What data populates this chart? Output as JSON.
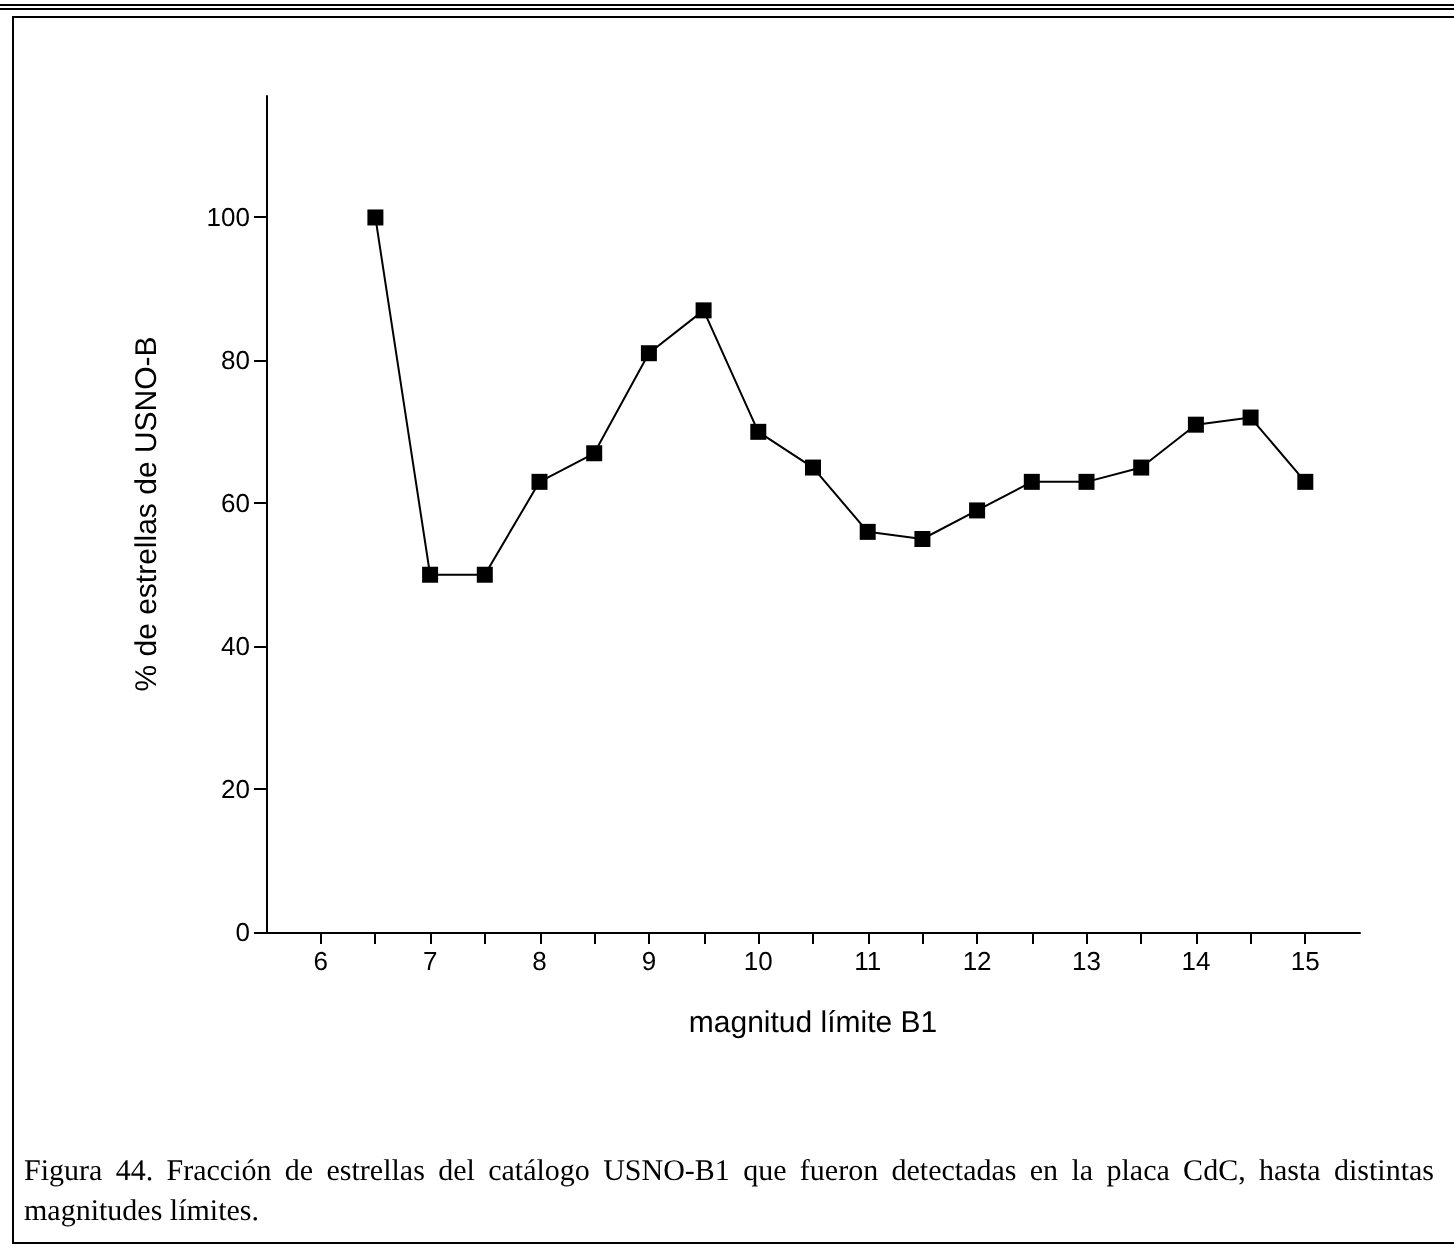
{
  "chart_data": {
    "type": "line",
    "xlabel": "magnitud límite B1",
    "ylabel": "% de estrellas de USNO-B",
    "x": [
      6.5,
      7,
      7.5,
      8,
      8.5,
      9,
      9.5,
      10,
      10.5,
      11,
      11.5,
      12,
      12.5,
      13,
      13.5,
      14,
      14.5,
      15
    ],
    "series": [
      {
        "color": "#000000",
        "values": [
          100,
          50,
          50,
          63,
          67,
          81,
          87,
          70,
          65,
          56,
          55,
          59,
          63,
          63,
          65,
          71,
          72,
          63
        ]
      }
    ],
    "xlim": [
      5.5,
      15.5
    ],
    "xticks": [
      6,
      7,
      8,
      9,
      10,
      11,
      12,
      13,
      14,
      15
    ],
    "ylim": [
      0,
      117
    ],
    "yticks": [
      0,
      20,
      40,
      60,
      80,
      100
    ],
    "marker": "square",
    "line_style": "solid",
    "grid": false,
    "annotations": [
      "Figura 44. Fracción de estrellas del catálogo USNO-B1 que fueron detectadas en la placa CdC, hasta distintas magnitudes límites."
    ]
  }
}
